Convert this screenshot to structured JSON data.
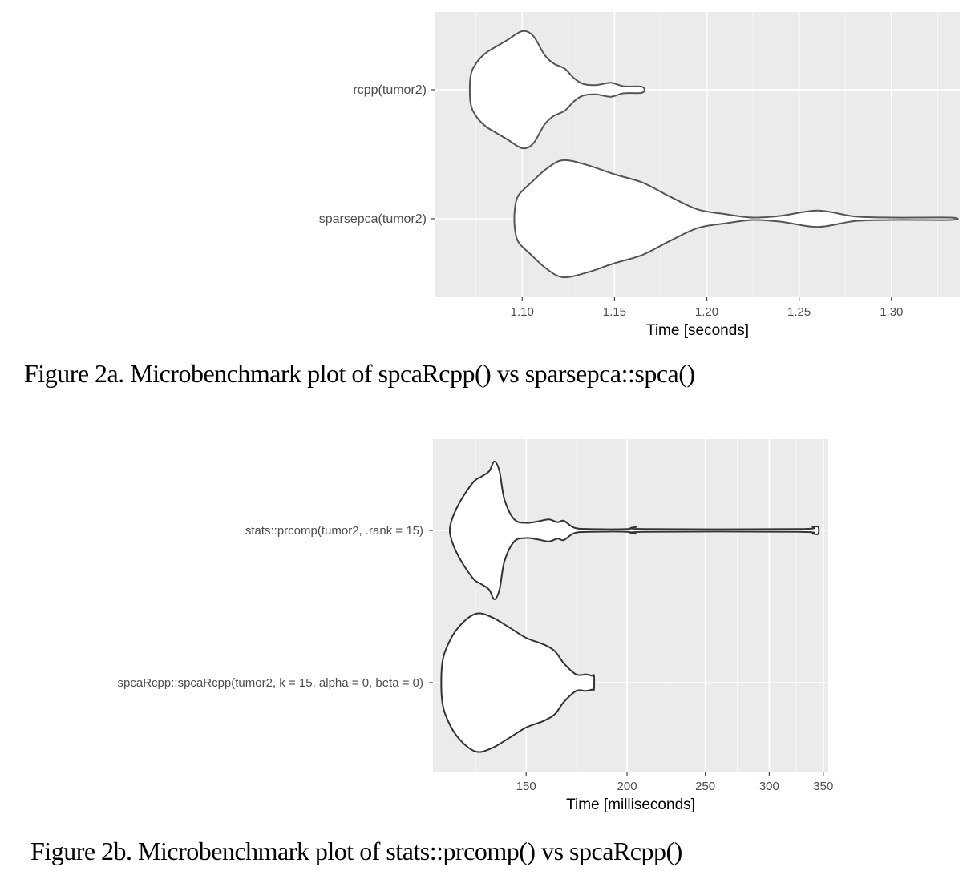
{
  "figures": [
    {
      "caption": "Figure 2a. Microbenchmark plot of spcaRcpp() vs sparsepca::spca()",
      "chart_data": {
        "type": "violin",
        "xlabel": "Time [seconds]",
        "xlim": [
          1.053,
          1.337
        ],
        "x_ticks": [
          "1.10",
          "1.15",
          "1.20",
          "1.25",
          "1.30"
        ],
        "x_tick_values": [
          1.1,
          1.15,
          1.2,
          1.25,
          1.3
        ],
        "categories": [
          "rcpp(tumor2)",
          "sparsepca(tumor2)"
        ],
        "grid": true,
        "series": [
          {
            "name": "rcpp(tumor2)",
            "outline_color": "#555555",
            "profile": [
              [
                1.072,
                0.22
              ],
              [
                1.075,
                0.45
              ],
              [
                1.08,
                0.62
              ],
              [
                1.085,
                0.72
              ],
              [
                1.092,
                0.85
              ],
              [
                1.1,
                1.0
              ],
              [
                1.106,
                0.92
              ],
              [
                1.112,
                0.6
              ],
              [
                1.117,
                0.45
              ],
              [
                1.123,
                0.36
              ],
              [
                1.128,
                0.2
              ],
              [
                1.133,
                0.1
              ],
              [
                1.14,
                0.08
              ],
              [
                1.148,
                0.12
              ],
              [
                1.155,
                0.06
              ],
              [
                1.165,
                0.05
              ]
            ]
          },
          {
            "name": "sparsepca(tumor2)",
            "outline_color": "#555555",
            "profile": [
              [
                1.096,
                0.15
              ],
              [
                1.098,
                0.4
              ],
              [
                1.105,
                0.62
              ],
              [
                1.113,
                0.85
              ],
              [
                1.122,
                1.0
              ],
              [
                1.135,
                0.92
              ],
              [
                1.15,
                0.76
              ],
              [
                1.165,
                0.62
              ],
              [
                1.18,
                0.38
              ],
              [
                1.195,
                0.16
              ],
              [
                1.21,
                0.08
              ],
              [
                1.225,
                0.02
              ],
              [
                1.24,
                0.05
              ],
              [
                1.26,
                0.14
              ],
              [
                1.28,
                0.04
              ],
              [
                1.3,
                0.02
              ],
              [
                1.332,
                0.02
              ]
            ]
          }
        ]
      }
    },
    {
      "caption": "Figure 2b. Microbenchmark plot of stats::prcomp() vs spcaRcpp()",
      "chart_data": {
        "type": "violin",
        "x_scale": "log",
        "xlabel": "Time [milliseconds]",
        "xlim": [
          115,
          355
        ],
        "x_ticks": [
          "150",
          "200",
          "250",
          "300",
          "350"
        ],
        "x_tick_values": [
          150,
          200,
          250,
          300,
          350
        ],
        "categories": [
          "stats::prcomp(tumor2, .rank = 15)",
          "spcaRcpp::spcaRcpp(tumor2, k = 15, alpha = 0, beta = 0)"
        ],
        "grid": true,
        "series": [
          {
            "name": "stats::prcomp(tumor2, .rank = 15)",
            "outline_color": "#333333",
            "profile": [
              [
                121,
                0.1
              ],
              [
                124,
                0.4
              ],
              [
                129,
                0.7
              ],
              [
                132,
                0.78
              ],
              [
                135,
                0.86
              ],
              [
                137,
                1.0
              ],
              [
                139,
                0.86
              ],
              [
                141,
                0.45
              ],
              [
                145,
                0.16
              ],
              [
                150,
                0.11
              ],
              [
                155,
                0.13
              ],
              [
                160,
                0.16
              ],
              [
                164,
                0.12
              ],
              [
                167,
                0.14
              ],
              [
                172,
                0.04
              ],
              [
                180,
                0.02
              ],
              [
                200,
                0.02
              ],
              [
                205,
                0.05
              ],
              [
                210,
                0.02
              ],
              [
                325,
                0.02
              ],
              [
                340,
                0.05
              ],
              [
                345,
                0.05
              ]
            ]
          },
          {
            "name": "spcaRcpp::spcaRcpp(tumor2, k = 15, alpha = 0, beta = 0)",
            "outline_color": "#333333",
            "profile": [
              [
                118,
                0.25
              ],
              [
                120,
                0.55
              ],
              [
                124,
                0.82
              ],
              [
                130,
                1.0
              ],
              [
                136,
                0.95
              ],
              [
                143,
                0.8
              ],
              [
                150,
                0.65
              ],
              [
                158,
                0.55
              ],
              [
                163,
                0.45
              ],
              [
                167,
                0.28
              ],
              [
                173,
                0.12
              ],
              [
                178,
                0.12
              ],
              [
                181,
                0.1
              ],
              [
                182,
                0.1
              ]
            ]
          }
        ]
      }
    }
  ]
}
